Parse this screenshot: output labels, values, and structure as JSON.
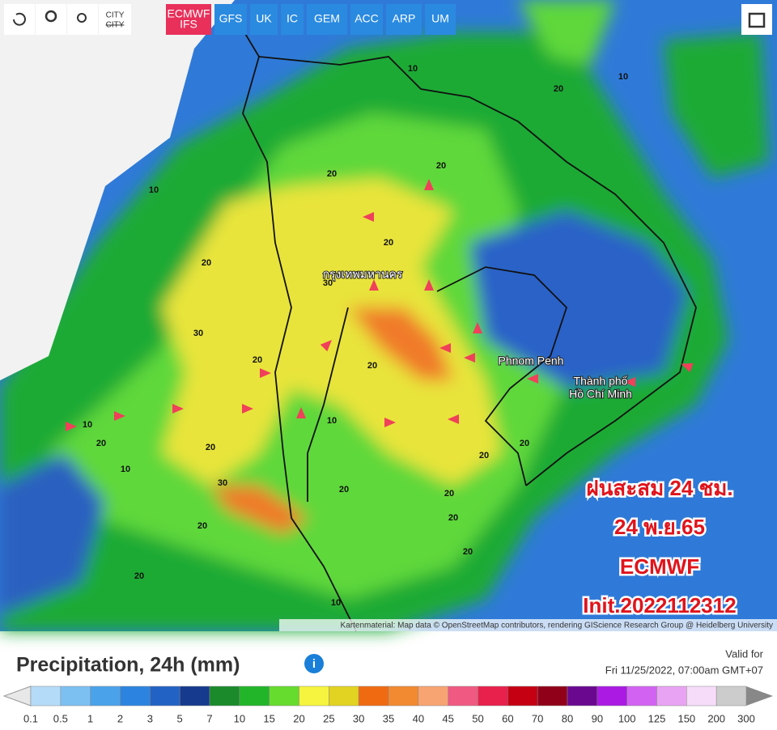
{
  "toolbar": {
    "city": "CITY",
    "models": [
      {
        "label": "ECMWF",
        "sublabel": "IFS",
        "active": true
      },
      {
        "label": "GFS"
      },
      {
        "label": "UK"
      },
      {
        "label": "IC"
      },
      {
        "label": "GEM"
      },
      {
        "label": "ACC"
      },
      {
        "label": "ARP"
      },
      {
        "label": "UM"
      }
    ]
  },
  "map": {
    "places": [
      "กรุงเทพมหานคร",
      "Phnom Penh",
      "Thành phố",
      "Hồ Chí Minh"
    ],
    "contour_labels": [
      10,
      20,
      10,
      20,
      20,
      20,
      30,
      20,
      30,
      20,
      20,
      10,
      10,
      20,
      20,
      10,
      30,
      20,
      20,
      20,
      20,
      20,
      20,
      10,
      20,
      20,
      10
    ],
    "overlay": [
      "ฝนสะสม 24 ชม.",
      "24 พ.ย.65",
      "ECMWF",
      "Init.2022112312"
    ],
    "attribution": "Kartenmaterial: Map data © OpenStreetMap contributors, rendering GIScience Research Group @ Heidelberg University"
  },
  "legend": {
    "title": "Precipitation, 24h (mm)",
    "valid_label": "Valid for",
    "valid_time": "Fri 11/25/2022, 07:00am GMT+07",
    "ticks": [
      0.1,
      0.5,
      1,
      2,
      3,
      5,
      7,
      10,
      15,
      20,
      25,
      30,
      35,
      40,
      45,
      50,
      60,
      70,
      80,
      90,
      100,
      125,
      150,
      200,
      300
    ],
    "colors": [
      "#b4dcf8",
      "#7cc0f2",
      "#4aa2ea",
      "#2c84e0",
      "#2262c4",
      "#163a8e",
      "#1a8a2a",
      "#22b52a",
      "#66dc2e",
      "#f6f43e",
      "#e2d222",
      "#f06a12",
      "#f28a32",
      "#f8a472",
      "#f05a82",
      "#e8204c",
      "#c40012",
      "#900018",
      "#6a0890",
      "#aa1ae2",
      "#d262f2",
      "#e8a4f2",
      "#f6dcf8",
      "#cccccc"
    ]
  }
}
